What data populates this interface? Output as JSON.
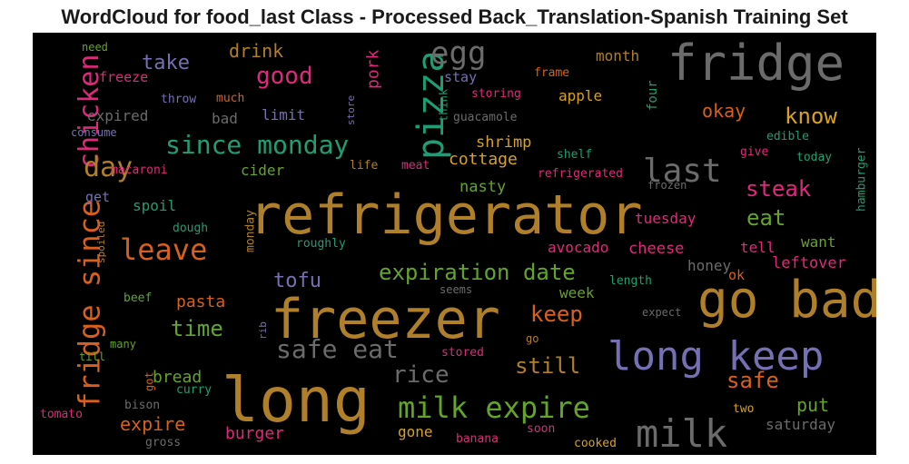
{
  "chart_data": {
    "type": "wordcloud",
    "title": "WordCloud for food_last Class - Processed Back_Translation-Spanish Training Set",
    "background_color": "#000000",
    "palette": {
      "brown": "#b07f2a",
      "gold": "#d9a21b",
      "gray": "#6b6b6b",
      "green": "#63a52a",
      "teal": "#1f9e76",
      "violet": "#7570b3",
      "pink": "#e0297c",
      "orange": "#d9601c"
    },
    "words": [
      {
        "text": "refrigerator",
        "weight": 1.0,
        "color": "brown"
      },
      {
        "text": "long",
        "weight": 0.92,
        "color": "brown"
      },
      {
        "text": "freezer",
        "weight": 0.88,
        "color": "brown"
      },
      {
        "text": "go bad",
        "weight": 0.82,
        "color": "brown"
      },
      {
        "text": "fridge",
        "weight": 0.78,
        "color": "gray"
      },
      {
        "text": "long keep",
        "weight": 0.7,
        "color": "violet"
      },
      {
        "text": "pizza",
        "weight": 0.6,
        "color": "teal"
      },
      {
        "text": "milk",
        "weight": 0.6,
        "color": "gray"
      },
      {
        "text": "fridge since",
        "weight": 0.5,
        "color": "orange"
      },
      {
        "text": "milk expire",
        "weight": 0.48,
        "color": "green"
      },
      {
        "text": "last",
        "weight": 0.48,
        "color": "gray"
      },
      {
        "text": "chicken",
        "weight": 0.47,
        "color": "pink"
      },
      {
        "text": "leave",
        "weight": 0.44,
        "color": "orange"
      },
      {
        "text": "egg",
        "weight": 0.42,
        "color": "gray"
      },
      {
        "text": "safe eat",
        "weight": 0.4,
        "color": "gray"
      },
      {
        "text": "since monday",
        "weight": 0.38,
        "color": "teal"
      },
      {
        "text": "day",
        "weight": 0.38,
        "color": "brown"
      },
      {
        "text": "rice",
        "weight": 0.34,
        "color": "gray"
      },
      {
        "text": "still",
        "weight": 0.33,
        "color": "brown"
      },
      {
        "text": "good",
        "weight": 0.32,
        "color": "pink"
      },
      {
        "text": "expiration date",
        "weight": 0.31,
        "color": "green"
      },
      {
        "text": "safe",
        "weight": 0.31,
        "color": "orange"
      },
      {
        "text": "know",
        "weight": 0.3,
        "color": "gold"
      },
      {
        "text": "steak",
        "weight": 0.3,
        "color": "pink"
      },
      {
        "text": "eat",
        "weight": 0.3,
        "color": "green"
      },
      {
        "text": "keep",
        "weight": 0.3,
        "color": "orange"
      },
      {
        "text": "time",
        "weight": 0.28,
        "color": "green"
      },
      {
        "text": "tofu",
        "weight": 0.28,
        "color": "violet"
      },
      {
        "text": "okay",
        "weight": 0.25,
        "color": "orange"
      },
      {
        "text": "take",
        "weight": 0.26,
        "color": "violet"
      },
      {
        "text": "drink",
        "weight": 0.25,
        "color": "brown"
      },
      {
        "text": "expire",
        "weight": 0.25,
        "color": "orange"
      },
      {
        "text": "put",
        "weight": 0.25,
        "color": "green"
      },
      {
        "text": "pork",
        "weight": 0.22,
        "color": "pink"
      },
      {
        "text": "bread",
        "weight": 0.21,
        "color": "green"
      },
      {
        "text": "burger",
        "weight": 0.21,
        "color": "pink"
      },
      {
        "text": "pasta",
        "weight": 0.21,
        "color": "orange"
      },
      {
        "text": "cottage",
        "weight": 0.2,
        "color": "gold"
      },
      {
        "text": "shrimp",
        "weight": 0.2,
        "color": "gold"
      },
      {
        "text": "nasty",
        "weight": 0.2,
        "color": "green"
      },
      {
        "text": "cheese",
        "weight": 0.2,
        "color": "pink"
      },
      {
        "text": "tuesday",
        "weight": 0.2,
        "color": "pink"
      },
      {
        "text": "avocado",
        "weight": 0.19,
        "color": "pink"
      },
      {
        "text": "leftover",
        "weight": 0.19,
        "color": "pink"
      },
      {
        "text": "tell",
        "weight": 0.19,
        "color": "pink"
      },
      {
        "text": "honey",
        "weight": 0.19,
        "color": "gray"
      },
      {
        "text": "saturday",
        "weight": 0.19,
        "color": "gray"
      },
      {
        "text": "spoil",
        "weight": 0.19,
        "color": "teal"
      },
      {
        "text": "limit",
        "weight": 0.18,
        "color": "violet"
      },
      {
        "text": "cider",
        "weight": 0.18,
        "color": "green"
      },
      {
        "text": "expired",
        "weight": 0.18,
        "color": "gray"
      },
      {
        "text": "apple",
        "weight": 0.18,
        "color": "gold"
      },
      {
        "text": "month",
        "weight": 0.18,
        "color": "brown"
      },
      {
        "text": "week",
        "weight": 0.18,
        "color": "green"
      },
      {
        "text": "want",
        "weight": 0.17,
        "color": "green"
      },
      {
        "text": "gone",
        "weight": 0.19,
        "color": "gold"
      },
      {
        "text": "bad",
        "weight": 0.17,
        "color": "gray"
      },
      {
        "text": "get",
        "weight": 0.17,
        "color": "violet"
      },
      {
        "text": "stay",
        "weight": 0.16,
        "color": "violet"
      },
      {
        "text": "freeze",
        "weight": 0.16,
        "color": "pink"
      },
      {
        "text": "four",
        "weight": 0.15,
        "color": "teal"
      },
      {
        "text": "monday",
        "weight": 0.15,
        "color": "brown"
      },
      {
        "text": "hamburger",
        "weight": 0.15,
        "color": "teal"
      },
      {
        "text": "ok",
        "weight": 0.15,
        "color": "orange"
      },
      {
        "text": "beef",
        "weight": 0.14,
        "color": "green"
      },
      {
        "text": "curry",
        "weight": 0.14,
        "color": "teal"
      },
      {
        "text": "bison",
        "weight": 0.14,
        "color": "gray"
      },
      {
        "text": "banana",
        "weight": 0.14,
        "color": "pink"
      },
      {
        "text": "cooked",
        "weight": 0.14,
        "color": "gold"
      },
      {
        "text": "two",
        "weight": 0.14,
        "color": "gold"
      },
      {
        "text": "soon",
        "weight": 0.13,
        "color": "pink"
      },
      {
        "text": "gross",
        "weight": 0.13,
        "color": "gray"
      },
      {
        "text": "tomato",
        "weight": 0.13,
        "color": "pink"
      },
      {
        "text": "dough",
        "weight": 0.13,
        "color": "teal"
      },
      {
        "text": "macaroni",
        "weight": 0.13,
        "color": "pink"
      },
      {
        "text": "meat",
        "weight": 0.13,
        "color": "pink"
      },
      {
        "text": "life",
        "weight": 0.12,
        "color": "brown"
      },
      {
        "text": "shelf",
        "weight": 0.13,
        "color": "teal"
      },
      {
        "text": "refrigerated",
        "weight": 0.13,
        "color": "pink"
      },
      {
        "text": "frozen",
        "weight": 0.12,
        "color": "gray"
      },
      {
        "text": "give",
        "weight": 0.13,
        "color": "pink"
      },
      {
        "text": "today",
        "weight": 0.13,
        "color": "teal"
      },
      {
        "text": "edible",
        "weight": 0.13,
        "color": "teal"
      },
      {
        "text": "guacamole",
        "weight": 0.13,
        "color": "gray"
      },
      {
        "text": "storing",
        "weight": 0.13,
        "color": "pink"
      },
      {
        "text": "frame",
        "weight": 0.13,
        "color": "orange"
      },
      {
        "text": "throw",
        "weight": 0.13,
        "color": "violet"
      },
      {
        "text": "much",
        "weight": 0.13,
        "color": "orange"
      },
      {
        "text": "need",
        "weight": 0.12,
        "color": "green"
      },
      {
        "text": "consume",
        "weight": 0.12,
        "color": "violet"
      },
      {
        "text": "think",
        "weight": 0.12,
        "color": "teal"
      },
      {
        "text": "store",
        "weight": 0.11,
        "color": "violet"
      },
      {
        "text": "spoiled",
        "weight": 0.11,
        "color": "brown"
      },
      {
        "text": "roughly",
        "weight": 0.13,
        "color": "teal"
      },
      {
        "text": "seems",
        "weight": 0.12,
        "color": "gray"
      },
      {
        "text": "length",
        "weight": 0.13,
        "color": "teal"
      },
      {
        "text": "expect",
        "weight": 0.13,
        "color": "gray"
      },
      {
        "text": "rib",
        "weight": 0.11,
        "color": "violet"
      },
      {
        "text": "many",
        "weight": 0.12,
        "color": "green"
      },
      {
        "text": "till",
        "weight": 0.12,
        "color": "green"
      },
      {
        "text": "got",
        "weight": 0.12,
        "color": "orange"
      },
      {
        "text": "stored",
        "weight": 0.13,
        "color": "pink"
      },
      {
        "text": "go",
        "weight": 0.12,
        "color": "brown"
      }
    ]
  }
}
